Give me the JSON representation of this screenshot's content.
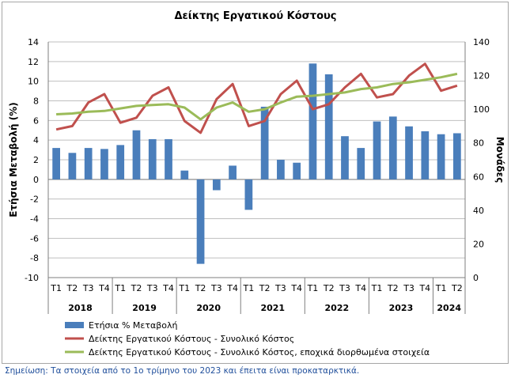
{
  "chart_data": {
    "type": "bar",
    "title": "Δείκτης Εργατικού Κόστους",
    "ylabel_left": "Ετήσια Μεταβολή (%)",
    "ylabel_right": "Μονάδες",
    "ylim_left": [
      -10,
      14
    ],
    "ylim_right": [
      0,
      140
    ],
    "yticks_left": [
      "-10",
      "-8",
      "-6",
      "-4",
      "-2",
      "0",
      "2",
      "4",
      "6",
      "8",
      "10",
      "12",
      "14"
    ],
    "yticks_right": [
      "0",
      "20",
      "40",
      "60",
      "80",
      "100",
      "120",
      "140"
    ],
    "quarters": [
      "T1",
      "T2",
      "T3",
      "T4",
      "T1",
      "T2",
      "T3",
      "T4",
      "T1",
      "T2",
      "T3",
      "T4",
      "T1",
      "T2",
      "T3",
      "T4",
      "T1",
      "T2",
      "T3",
      "T4",
      "T1",
      "T2",
      "T3",
      "T4",
      "T1",
      "T2"
    ],
    "years": [
      {
        "label": "2018",
        "count": 4
      },
      {
        "label": "2019",
        "count": 4
      },
      {
        "label": "2020",
        "count": 4
      },
      {
        "label": "2021",
        "count": 4
      },
      {
        "label": "2022",
        "count": 4
      },
      {
        "label": "2023",
        "count": 4
      },
      {
        "label": "2024",
        "count": 2
      }
    ],
    "grid": true,
    "legend_position": "bottom",
    "series": [
      {
        "name": "Ετήσια % Μεταβολή",
        "type": "bar",
        "axis": "left",
        "color": "#4a7ebb",
        "values": [
          3.2,
          2.7,
          3.2,
          3.1,
          3.5,
          5.0,
          4.1,
          4.1,
          0.9,
          -8.6,
          -1.1,
          1.4,
          -3.1,
          7.4,
          2.0,
          1.7,
          11.8,
          10.7,
          4.4,
          3.2,
          5.9,
          6.4,
          5.4,
          4.9,
          4.6,
          4.7
        ]
      },
      {
        "name": "Δείκτης Εργατικού Κόστους - Συνολικό Κόστος",
        "type": "line",
        "axis": "right",
        "color": "#c0504d",
        "values": [
          88,
          90,
          104,
          109,
          92,
          95,
          108,
          113,
          93,
          86,
          106,
          115,
          90,
          93,
          109,
          117,
          100,
          103,
          113,
          121,
          107,
          109,
          120,
          127,
          111,
          114
        ]
      },
      {
        "name": "Δείκτης Εργατικού Κόστους - Συνολικό Κόστος, εποχικά διορθωμένα στοιχεία",
        "type": "line",
        "axis": "right",
        "color": "#9bbb59",
        "values": [
          97,
          97.5,
          98.5,
          99,
          100.5,
          102,
          102.5,
          103,
          101,
          94,
          101,
          104,
          98.5,
          100,
          104,
          107.5,
          108,
          109,
          110,
          112,
          113,
          115,
          116,
          117.5,
          119,
          121
        ]
      }
    ]
  },
  "note": "Σημείωση: Τα στοιχεία από το 1ο τρίμηνο του 2023 και έπειτα είναι προκαταρκτικά."
}
